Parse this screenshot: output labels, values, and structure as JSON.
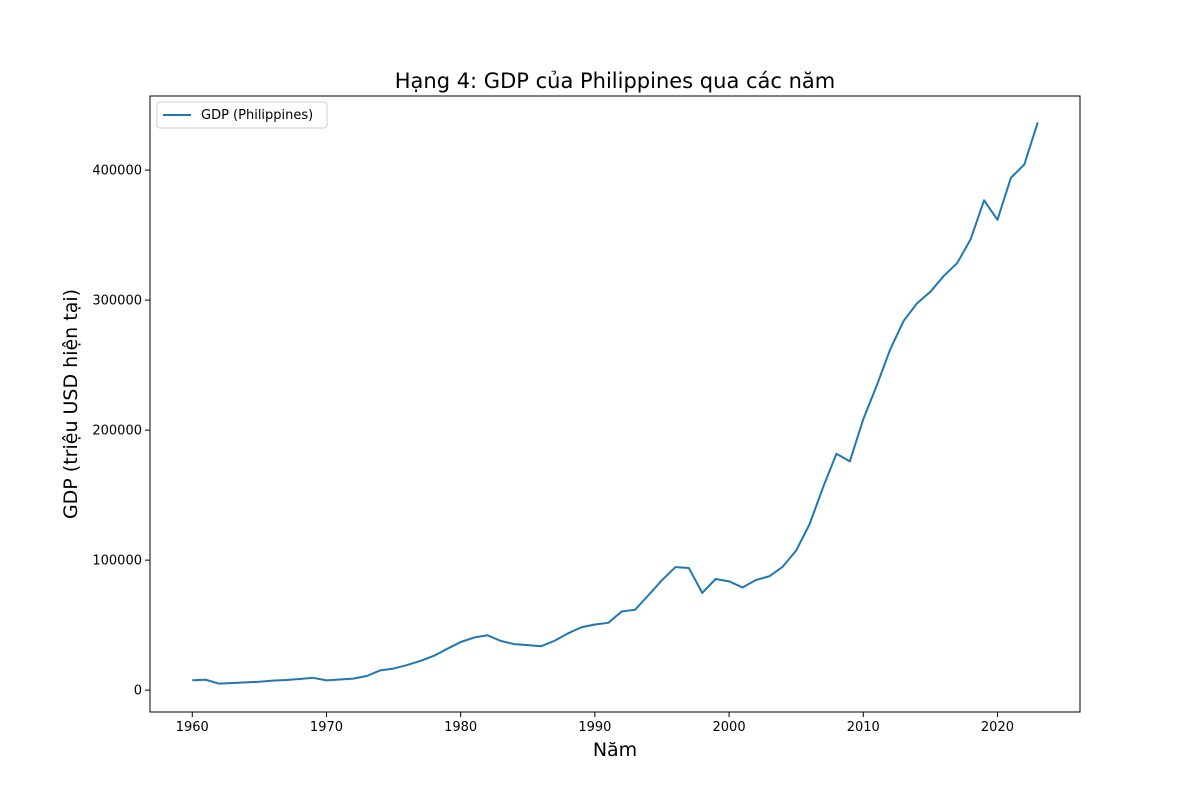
{
  "chart_data": {
    "type": "line",
    "title": "Hạng 4: GDP của Philippines qua các năm",
    "xlabel": "Năm",
    "ylabel": "GDP (triệu USD hiện tại)",
    "xlim": [
      1956.85,
      2026.15
    ],
    "ylim": [
      -16800,
      457000
    ],
    "x_ticks": [
      1960,
      1970,
      1980,
      1990,
      2000,
      2010,
      2020
    ],
    "y_ticks": [
      0,
      100000,
      200000,
      300000,
      400000
    ],
    "grid": false,
    "legend_position": "upper-left",
    "series": [
      {
        "name": "GDP (Philippines)",
        "color": "#1f77b4",
        "x": [
          1960,
          1961,
          1962,
          1963,
          1964,
          1965,
          1966,
          1967,
          1968,
          1969,
          1970,
          1971,
          1972,
          1973,
          1974,
          1975,
          1976,
          1977,
          1978,
          1979,
          1980,
          1981,
          1982,
          1983,
          1984,
          1985,
          1986,
          1987,
          1988,
          1989,
          1990,
          1991,
          1992,
          1993,
          1994,
          1995,
          1996,
          1997,
          1998,
          1999,
          2000,
          2001,
          2002,
          2003,
          2004,
          2005,
          2006,
          2007,
          2008,
          2009,
          2010,
          2011,
          2012,
          2013,
          2014,
          2015,
          2016,
          2017,
          2018,
          2019,
          2020,
          2021,
          2022,
          2023
        ],
        "values": [
          7600,
          8000,
          5000,
          5500,
          6000,
          6500,
          7300,
          7800,
          8600,
          9500,
          7500,
          8200,
          8900,
          10900,
          15200,
          16600,
          19300,
          22500,
          26400,
          31800,
          37000,
          40500,
          42200,
          37800,
          35400,
          34600,
          33800,
          38000,
          43700,
          48400,
          50500,
          51800,
          60500,
          61900,
          73100,
          84600,
          94600,
          94000,
          74800,
          85500,
          83700,
          79000,
          84700,
          87600,
          95000,
          107400,
          127700,
          155900,
          181800,
          176000,
          208400,
          234200,
          261900,
          283900,
          297500,
          306400,
          318600,
          328500,
          346800,
          376800,
          361800,
          394100,
          404300,
          436700
        ]
      }
    ]
  }
}
